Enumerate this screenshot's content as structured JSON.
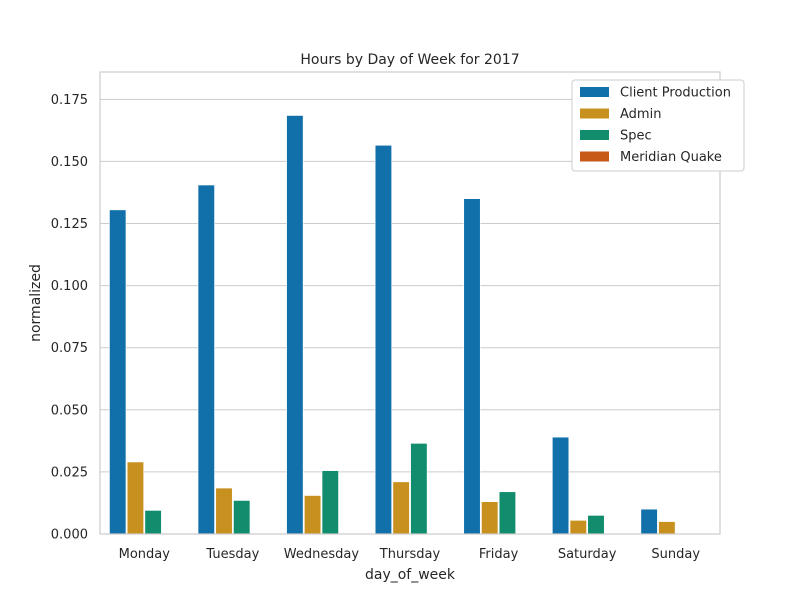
{
  "chart_data": {
    "type": "bar",
    "title": "Hours by Day of Week for 2017",
    "xlabel": "day_of_week",
    "ylabel": "normalized",
    "ylim": [
      0,
      0.186
    ],
    "yticks": [
      "0.000",
      "0.025",
      "0.050",
      "0.075",
      "0.100",
      "0.125",
      "0.150",
      "0.175"
    ],
    "grid": true,
    "legend_position": "top-right",
    "categories": [
      "Monday",
      "Tuesday",
      "Wednesday",
      "Thursday",
      "Friday",
      "Saturday",
      "Sunday"
    ],
    "series": [
      {
        "name": "Client Production",
        "color": "#1170aa",
        "values": [
          0.1305,
          0.1405,
          0.1685,
          0.1565,
          0.135,
          0.039,
          0.01
        ]
      },
      {
        "name": "Admin",
        "color": "#c8901e",
        "values": [
          0.029,
          0.0185,
          0.0155,
          0.021,
          0.013,
          0.0055,
          0.005
        ]
      },
      {
        "name": "Spec",
        "color": "#118c6c",
        "values": [
          0.0095,
          0.0135,
          0.0255,
          0.0365,
          0.017,
          0.0075,
          0.0
        ]
      },
      {
        "name": "Meridian Quake",
        "color": "#c85a17",
        "values": [
          0.0,
          0.0,
          0.0,
          0.0,
          0.0,
          0.0,
          0.0
        ]
      }
    ]
  }
}
